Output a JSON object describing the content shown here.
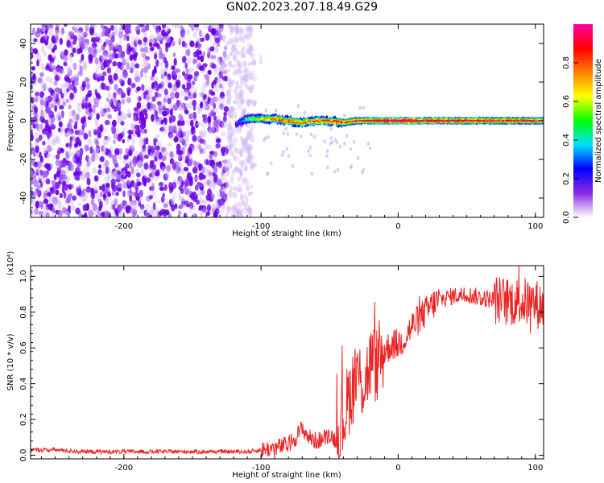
{
  "title": "GN02.2023.207.18.49.G29",
  "chart_data": [
    {
      "type": "heatmap",
      "title": "",
      "xlabel": "Height of straight line (km)",
      "ylabel": "Frequency (Hz)",
      "xlim": [
        -268,
        106
      ],
      "ylim": [
        -50,
        50
      ],
      "xticks": [
        -200,
        -100,
        0,
        100
      ],
      "yticks": [
        -40,
        -20,
        0,
        20,
        40
      ],
      "colorbar": {
        "label": "Normalized spectral amplitude",
        "range": [
          0.0,
          1.0
        ],
        "ticks": [
          0.0,
          0.2,
          0.4,
          0.6,
          0.8
        ],
        "colormap": [
          "#ffffff",
          "#8a2be2",
          "#0000ff",
          "#00e0ff",
          "#00ff00",
          "#ffff00",
          "#ff8000",
          "#ff0000",
          "#ff00a0"
        ]
      },
      "noise_region_x": [
        -268,
        -100
      ],
      "ridge": [
        {
          "x": -118,
          "y": -2,
          "amp": 0.2
        },
        {
          "x": -110,
          "y": 1,
          "amp": 0.45
        },
        {
          "x": -100,
          "y": 1,
          "amp": 0.6
        },
        {
          "x": -90,
          "y": 1,
          "amp": 0.75
        },
        {
          "x": -80,
          "y": 0,
          "amp": 0.8
        },
        {
          "x": -70,
          "y": -1,
          "amp": 0.7
        },
        {
          "x": -60,
          "y": 0,
          "amp": 0.75
        },
        {
          "x": -50,
          "y": 0,
          "amp": 0.8
        },
        {
          "x": -40,
          "y": -1,
          "amp": 0.8
        },
        {
          "x": -30,
          "y": 0,
          "amp": 0.85
        },
        {
          "x": -20,
          "y": 0,
          "amp": 0.9
        },
        {
          "x": -10,
          "y": 0,
          "amp": 0.95
        },
        {
          "x": 0,
          "y": 0,
          "amp": 1.0
        },
        {
          "x": 10,
          "y": 0,
          "amp": 1.0
        },
        {
          "x": 20,
          "y": 0,
          "amp": 0.95
        },
        {
          "x": 30,
          "y": 0,
          "amp": 0.95
        },
        {
          "x": 40,
          "y": 0,
          "amp": 0.9
        },
        {
          "x": 50,
          "y": 0,
          "amp": 0.9
        },
        {
          "x": 60,
          "y": 0,
          "amp": 0.9
        },
        {
          "x": 70,
          "y": 0,
          "amp": 0.85
        },
        {
          "x": 80,
          "y": 0,
          "amp": 0.85
        },
        {
          "x": 90,
          "y": 0,
          "amp": 0.85
        },
        {
          "x": 100,
          "y": 0,
          "amp": 0.8
        },
        {
          "x": 106,
          "y": 0,
          "amp": 0.8
        }
      ],
      "grid": false
    },
    {
      "type": "line",
      "title": "",
      "xlabel": "Height of straight line (km)",
      "ylabel": "SNR (10 * v/v)",
      "y_multiplier": "(x10⁴)",
      "xlim": [
        -268,
        106
      ],
      "ylim": [
        -0.02,
        1.06
      ],
      "xticks": [
        -200,
        -100,
        0,
        100
      ],
      "yticks": [
        0.0,
        0.2,
        0.4,
        0.6,
        0.8,
        1.0
      ],
      "color": "#ee2222",
      "series": [
        {
          "x": [
            -268,
            -250,
            -230,
            -210,
            -190,
            -170,
            -150,
            -130,
            -110,
            -100,
            -90,
            -80,
            -75,
            -70,
            -65,
            -60,
            -55,
            -50,
            -45,
            -40,
            -35,
            -30,
            -25,
            -20,
            -15,
            -10,
            -5,
            0,
            5,
            10,
            15,
            20,
            25,
            30,
            40,
            50,
            60,
            70,
            80,
            90,
            100,
            106
          ],
          "values": [
            0.03,
            0.03,
            0.02,
            0.02,
            0.02,
            0.02,
            0.02,
            0.02,
            0.02,
            0.03,
            0.04,
            0.06,
            0.1,
            0.15,
            0.1,
            0.08,
            0.09,
            0.12,
            0.08,
            0.2,
            0.35,
            0.45,
            0.4,
            0.52,
            0.5,
            0.58,
            0.62,
            0.62,
            0.66,
            0.72,
            0.76,
            0.8,
            0.84,
            0.87,
            0.89,
            0.9,
            0.88,
            0.87,
            0.86,
            0.86,
            0.85,
            0.83
          ]
        }
      ],
      "grid": false
    }
  ]
}
